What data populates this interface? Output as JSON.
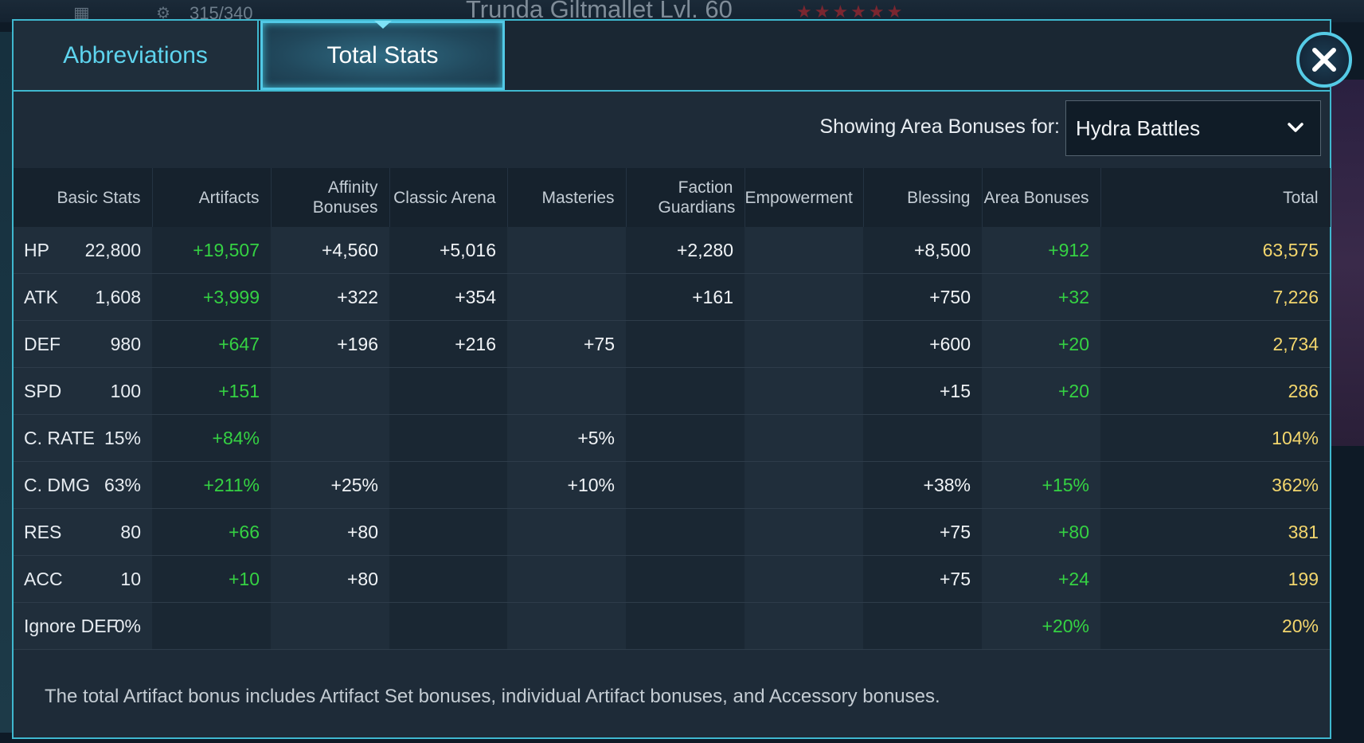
{
  "background": {
    "hero_name": "Trunda Giltmallet Lvl. 60",
    "hero_counter": "315/340",
    "stars": "★★★★★★"
  },
  "tabs": [
    {
      "label": "Abbreviations",
      "active": false
    },
    {
      "label": "Total Stats",
      "active": true
    }
  ],
  "filter": {
    "label": "Showing Area Bonuses for:",
    "selected": "Hydra Battles"
  },
  "table": {
    "headers": [
      "Basic Stats",
      "Artifacts",
      "Affinity Bonuses",
      "Classic Arena",
      "Masteries",
      "Faction Guardians",
      "Empowerment",
      "Blessing",
      "Area Bonuses",
      "Total"
    ],
    "rows": [
      {
        "stat": "HP",
        "basic": "22,800",
        "artifacts": "+19,507",
        "affinity": "+4,560",
        "arena": "+5,016",
        "masteries": "",
        "guardians": "+2,280",
        "empowerment": "",
        "blessing": "+8,500",
        "area": "+912",
        "total": "63,575"
      },
      {
        "stat": "ATK",
        "basic": "1,608",
        "artifacts": "+3,999",
        "affinity": "+322",
        "arena": "+354",
        "masteries": "",
        "guardians": "+161",
        "empowerment": "",
        "blessing": "+750",
        "area": "+32",
        "total": "7,226"
      },
      {
        "stat": "DEF",
        "basic": "980",
        "artifacts": "+647",
        "affinity": "+196",
        "arena": "+216",
        "masteries": "+75",
        "guardians": "",
        "empowerment": "",
        "blessing": "+600",
        "area": "+20",
        "total": "2,734"
      },
      {
        "stat": "SPD",
        "basic": "100",
        "artifacts": "+151",
        "affinity": "",
        "arena": "",
        "masteries": "",
        "guardians": "",
        "empowerment": "",
        "blessing": "+15",
        "area": "+20",
        "total": "286"
      },
      {
        "stat": "C. RATE",
        "basic": "15%",
        "artifacts": "+84%",
        "affinity": "",
        "arena": "",
        "masteries": "+5%",
        "guardians": "",
        "empowerment": "",
        "blessing": "",
        "area": "",
        "total": "104%"
      },
      {
        "stat": "C. DMG",
        "basic": "63%",
        "artifacts": "+211%",
        "affinity": "+25%",
        "arena": "",
        "masteries": "+10%",
        "guardians": "",
        "empowerment": "",
        "blessing": "+38%",
        "area": "+15%",
        "total": "362%"
      },
      {
        "stat": "RES",
        "basic": "80",
        "artifacts": "+66",
        "affinity": "+80",
        "arena": "",
        "masteries": "",
        "guardians": "",
        "empowerment": "",
        "blessing": "+75",
        "area": "+80",
        "total": "381"
      },
      {
        "stat": "ACC",
        "basic": "10",
        "artifacts": "+10",
        "affinity": "+80",
        "arena": "",
        "masteries": "",
        "guardians": "",
        "empowerment": "",
        "blessing": "+75",
        "area": "+24",
        "total": "199"
      },
      {
        "stat": "Ignore DEF",
        "basic": "0%",
        "artifacts": "",
        "affinity": "",
        "arena": "",
        "masteries": "",
        "guardians": "",
        "empowerment": "",
        "blessing": "",
        "area": "+20%",
        "total": "20%"
      }
    ]
  },
  "footer_note": "The total Artifact bonus includes Artifact Set bonuses, individual Artifact bonuses, and Accessory bonuses.",
  "colors": {
    "accent": "#3fb8cf",
    "bonus_green": "#35d243",
    "total_yellow": "#f3d66d"
  },
  "icons": {
    "close": "close-icon",
    "dropdown": "chevron-down-icon"
  }
}
